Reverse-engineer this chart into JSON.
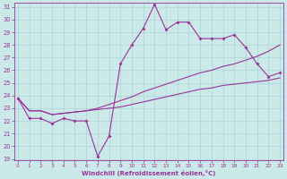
{
  "xlabel": "Windchill (Refroidissement éolien,°C)",
  "x_hours": [
    0,
    1,
    2,
    3,
    4,
    5,
    6,
    7,
    8,
    9,
    10,
    11,
    12,
    13,
    14,
    15,
    16,
    17,
    18,
    19,
    20,
    21,
    22,
    23
  ],
  "line_jagged": [
    23.8,
    22.2,
    22.2,
    21.8,
    22.2,
    22.0,
    22.0,
    19.2,
    20.8,
    26.5,
    28.0,
    29.3,
    31.2,
    29.2,
    29.8,
    29.8,
    28.5,
    28.5,
    28.5,
    28.8,
    27.8,
    26.5,
    25.5,
    25.8
  ],
  "line_upper": [
    23.8,
    22.8,
    22.8,
    22.5,
    22.6,
    22.7,
    22.8,
    23.0,
    23.3,
    23.6,
    23.9,
    24.3,
    24.6,
    24.9,
    25.2,
    25.5,
    25.8,
    26.0,
    26.3,
    26.5,
    26.8,
    27.1,
    27.5,
    28.0
  ],
  "line_lower": [
    23.8,
    22.8,
    22.8,
    22.5,
    22.6,
    22.7,
    22.8,
    22.9,
    23.0,
    23.1,
    23.3,
    23.5,
    23.7,
    23.9,
    24.1,
    24.3,
    24.5,
    24.6,
    24.8,
    24.9,
    25.0,
    25.1,
    25.2,
    25.4
  ],
  "bg_color": "#cce9e9",
  "grid_color": "#aad4d4",
  "line_color": "#993399",
  "ylim_min": 19,
  "ylim_max": 31,
  "xlim_min": 0,
  "xlim_max": 23
}
